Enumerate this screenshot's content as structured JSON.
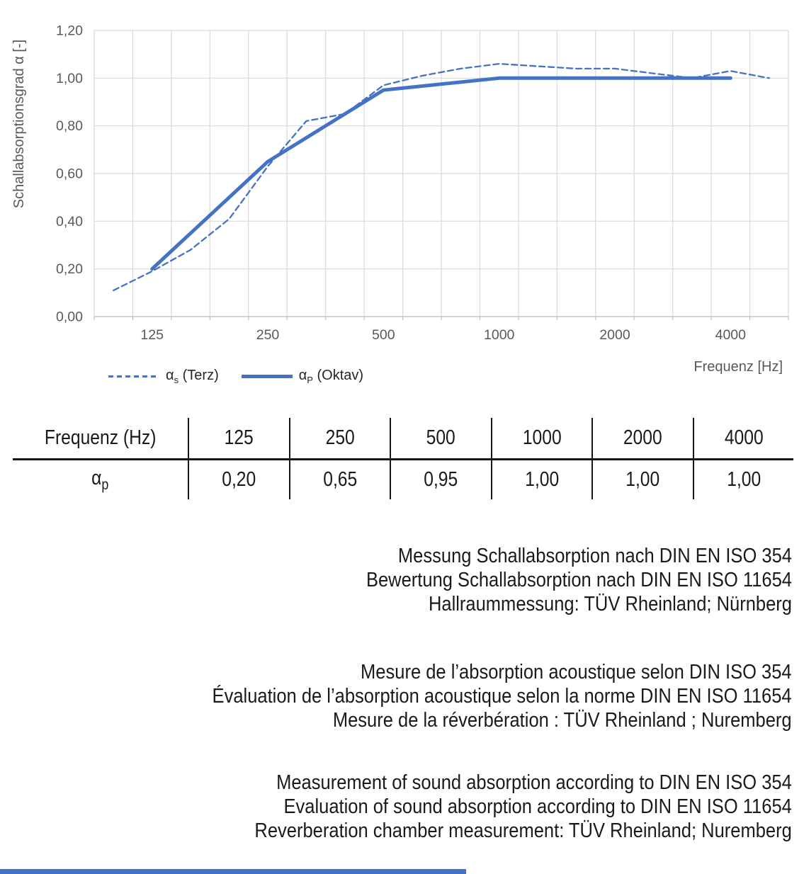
{
  "colors": {
    "accent_blue": "#4472C4",
    "grid_gray": "#D9D9D9",
    "axis_gray": "#BFBFBF",
    "label_gray": "#595959",
    "text_black": "#161616"
  },
  "chart": {
    "legend": [
      {
        "alpha": "α",
        "sub": "s",
        "rest": " (Terz)"
      },
      {
        "alpha": "α",
        "sub": "P",
        "rest": " (Oktav)"
      }
    ]
  },
  "chart_data": {
    "type": "line",
    "title": "",
    "xlabel": "Frequenz [Hz]",
    "ylabel": "Schallabsorptionsgrad α [-]",
    "ylim": [
      0,
      1.2
    ],
    "y_ticks": [
      "0,00",
      "0,20",
      "0,40",
      "0,60",
      "0,80",
      "1,00",
      "1,20"
    ],
    "x_categories": [
      "100",
      "125",
      "160",
      "200",
      "250",
      "315",
      "400",
      "500",
      "630",
      "800",
      "1000",
      "1250",
      "1600",
      "2000",
      "2500",
      "3150",
      "4000",
      "5000"
    ],
    "x_tick_labels": [
      "125",
      "250",
      "500",
      "1000",
      "2000",
      "4000"
    ],
    "grid": true,
    "legend_position": "bottom-left",
    "series": [
      {
        "name": "αs (Terz)",
        "line": "dashed",
        "x": [
          "100",
          "125",
          "160",
          "200",
          "250",
          "315",
          "400",
          "500",
          "630",
          "800",
          "1000",
          "1250",
          "1600",
          "2000",
          "2500",
          "3150",
          "4000",
          "5000"
        ],
        "values": [
          0.11,
          0.19,
          0.28,
          0.41,
          0.63,
          0.82,
          0.85,
          0.97,
          1.01,
          1.04,
          1.06,
          1.05,
          1.04,
          1.04,
          1.02,
          1.0,
          1.03,
          1.0
        ]
      },
      {
        "name": "αp (Oktav)",
        "line": "solid",
        "x": [
          "125",
          "250",
          "500",
          "1000",
          "2000",
          "4000"
        ],
        "values": [
          0.2,
          0.65,
          0.95,
          1.0,
          1.0,
          1.0
        ]
      }
    ]
  },
  "table": {
    "header_label": "Frequenz (Hz)",
    "frequencies": [
      "125",
      "250",
      "500",
      "1000",
      "2000",
      "4000"
    ],
    "row_label_alpha": "α",
    "row_label_sub": "p",
    "alpha_p": [
      "0,20",
      "0,65",
      "0,95",
      "1,00",
      "1,00",
      "1,00"
    ]
  },
  "notes": {
    "de": [
      "Messung Schallabsorption nach DIN EN ISO 354",
      "Bewertung Schallabsorption nach DIN EN ISO 11654",
      "Hallraummessung: TÜV Rheinland; Nürnberg"
    ],
    "fr": [
      "Mesure de l’absorption acoustique selon DIN ISO 354",
      "Évaluation de l’absorption acoustique selon la norme DIN EN ISO 11654",
      "Mesure de la réverbération : TÜV Rheinland ; Nuremberg"
    ],
    "en": [
      "Measurement of sound absorption according to DIN EN ISO 354",
      "Evaluation of sound absorption according to DIN EN ISO 11654",
      "Reverberation chamber measurement: TÜV Rheinland; Nuremberg"
    ]
  }
}
